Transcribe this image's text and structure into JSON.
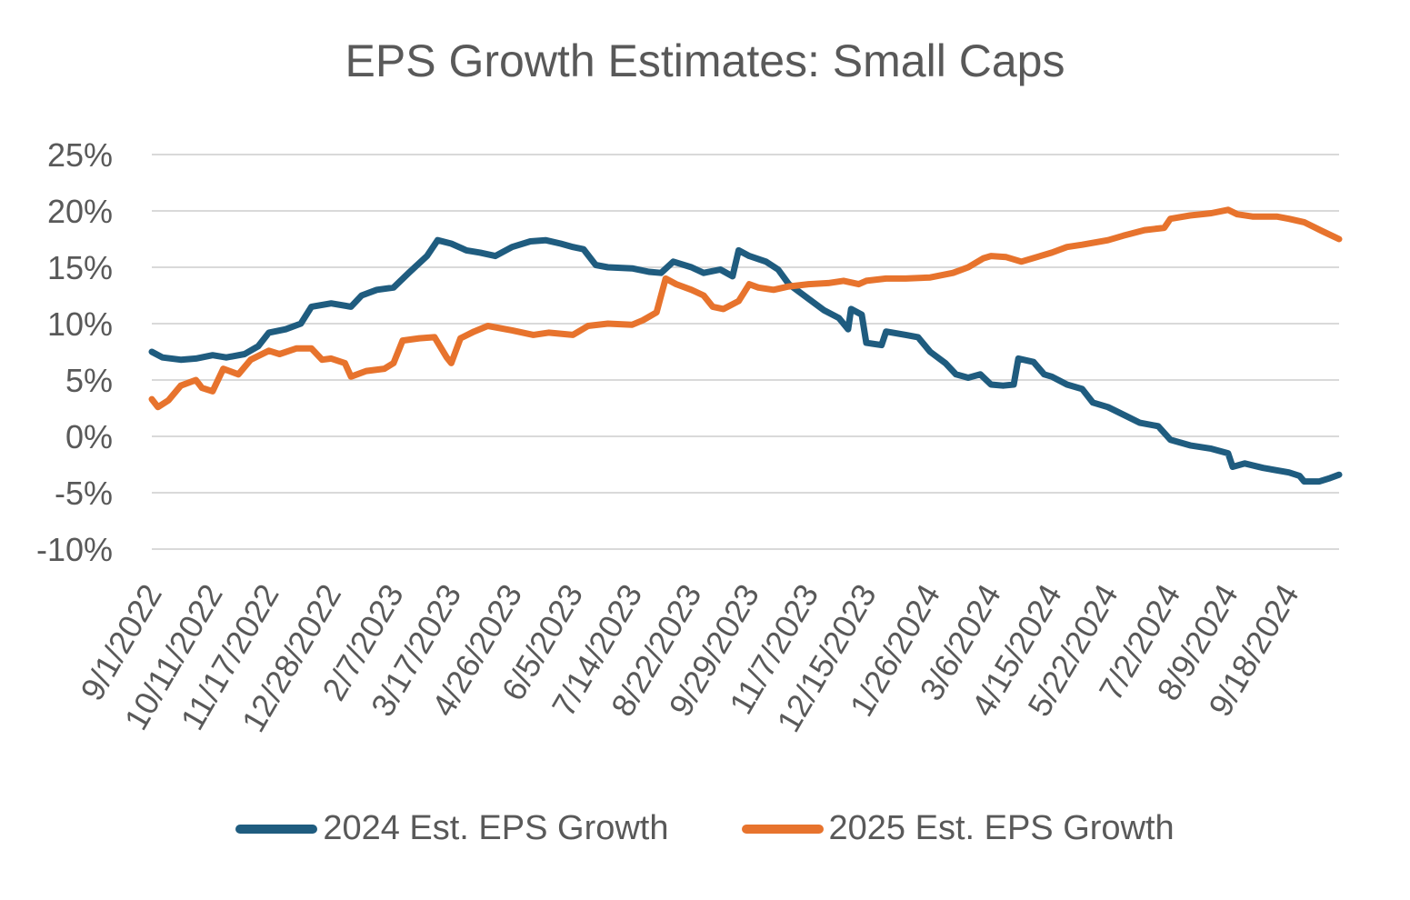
{
  "chart_data": {
    "type": "line",
    "title": "EPS Growth Estimates: Small Caps",
    "xlabel": "",
    "ylabel": "",
    "ylim": [
      -10,
      25
    ],
    "y_ticks": [
      "25%",
      "20%",
      "15%",
      "10%",
      "5%",
      "0%",
      "-5%",
      "-10%"
    ],
    "y_tick_values": [
      25,
      20,
      15,
      10,
      5,
      0,
      -5,
      -10
    ],
    "x_ticks": [
      "9/1/2022",
      "10/11/2022",
      "11/17/2022",
      "12/28/2022",
      "2/7/2023",
      "3/17/2023",
      "4/26/2023",
      "6/5/2023",
      "7/14/2023",
      "8/22/2023",
      "9/29/2023",
      "11/7/2023",
      "12/15/2023",
      "1/26/2024",
      "3/6/2024",
      "4/15/2024",
      "5/22/2024",
      "7/2/2024",
      "8/9/2024",
      "9/18/2024"
    ],
    "x_range": [
      "9/1/2022",
      "10/21/2024"
    ],
    "grid": true,
    "legend_position": "bottom",
    "series": [
      {
        "name": "2024 Est. EPS Growth",
        "color": "#1f5c7f",
        "points": [
          [
            "9/1/2022",
            7.5
          ],
          [
            "9/8/2022",
            7.0
          ],
          [
            "9/20/2022",
            6.8
          ],
          [
            "9/30/2022",
            6.9
          ],
          [
            "10/11/2022",
            7.2
          ],
          [
            "10/20/2022",
            7.0
          ],
          [
            "11/1/2022",
            7.3
          ],
          [
            "11/10/2022",
            8.0
          ],
          [
            "11/17/2022",
            9.2
          ],
          [
            "11/28/2022",
            9.5
          ],
          [
            "12/8/2022",
            10.0
          ],
          [
            "12/15/2022",
            11.5
          ],
          [
            "12/28/2022",
            11.8
          ],
          [
            "1/10/2023",
            11.5
          ],
          [
            "1/17/2023",
            12.5
          ],
          [
            "1/27/2023",
            13.0
          ],
          [
            "2/7/2023",
            13.2
          ],
          [
            "2/17/2023",
            14.5
          ],
          [
            "3/1/2023",
            16.0
          ],
          [
            "3/8/2023",
            17.4
          ],
          [
            "3/17/2023",
            17.1
          ],
          [
            "3/27/2023",
            16.5
          ],
          [
            "4/5/2023",
            16.3
          ],
          [
            "4/15/2023",
            16.0
          ],
          [
            "4/26/2023",
            16.8
          ],
          [
            "5/8/2023",
            17.3
          ],
          [
            "5/18/2023",
            17.4
          ],
          [
            "5/28/2023",
            17.1
          ],
          [
            "6/5/2023",
            16.8
          ],
          [
            "6/12/2023",
            16.6
          ],
          [
            "6/20/2023",
            15.2
          ],
          [
            "6/28/2023",
            15.0
          ],
          [
            "7/14/2023",
            14.9
          ],
          [
            "7/25/2023",
            14.6
          ],
          [
            "8/2/2023",
            14.5
          ],
          [
            "8/10/2023",
            15.5
          ],
          [
            "8/22/2023",
            15.0
          ],
          [
            "8/30/2023",
            14.5
          ],
          [
            "9/10/2023",
            14.8
          ],
          [
            "9/18/2023",
            14.2
          ],
          [
            "9/22/2023",
            16.5
          ],
          [
            "9/29/2023",
            16.0
          ],
          [
            "10/10/2023",
            15.5
          ],
          [
            "10/18/2023",
            14.8
          ],
          [
            "10/25/2023",
            13.5
          ],
          [
            "11/7/2023",
            12.2
          ],
          [
            "11/17/2023",
            11.2
          ],
          [
            "11/27/2023",
            10.5
          ],
          [
            "12/3/2023",
            9.5
          ],
          [
            "12/5/2023",
            11.3
          ],
          [
            "12/12/2023",
            10.8
          ],
          [
            "12/15/2023",
            8.3
          ],
          [
            "12/25/2023",
            8.1
          ],
          [
            "12/28/2023",
            9.3
          ],
          [
            "1/10/2024",
            9.0
          ],
          [
            "1/18/2024",
            8.8
          ],
          [
            "1/26/2024",
            7.5
          ],
          [
            "2/5/2024",
            6.5
          ],
          [
            "2/12/2024",
            5.5
          ],
          [
            "2/20/2024",
            5.2
          ],
          [
            "2/28/2024",
            5.5
          ],
          [
            "3/6/2024",
            4.6
          ],
          [
            "3/14/2024",
            4.5
          ],
          [
            "3/21/2024",
            4.6
          ],
          [
            "3/24/2024",
            6.9
          ],
          [
            "4/3/2024",
            6.6
          ],
          [
            "4/10/2024",
            5.5
          ],
          [
            "4/15/2024",
            5.3
          ],
          [
            "4/25/2024",
            4.6
          ],
          [
            "5/5/2024",
            4.2
          ],
          [
            "5/12/2024",
            3.0
          ],
          [
            "5/22/2024",
            2.6
          ],
          [
            "6/3/2024",
            1.8
          ],
          [
            "6/12/2024",
            1.2
          ],
          [
            "6/24/2024",
            0.9
          ],
          [
            "7/2/2024",
            -0.3
          ],
          [
            "7/15/2024",
            -0.8
          ],
          [
            "7/29/2024",
            -1.1
          ],
          [
            "8/9/2024",
            -1.5
          ],
          [
            "8/12/2024",
            -2.7
          ],
          [
            "8/20/2024",
            -2.4
          ],
          [
            "9/1/2024",
            -2.8
          ],
          [
            "9/18/2024",
            -3.2
          ],
          [
            "9/25/2024",
            -3.5
          ],
          [
            "9/28/2024",
            -4.0
          ],
          [
            "10/8/2024",
            -4.0
          ],
          [
            "10/15/2024",
            -3.7
          ],
          [
            "10/21/2024",
            -3.4
          ]
        ]
      },
      {
        "name": "2025 Est. EPS Growth",
        "color": "#e7732d",
        "points": [
          [
            "9/1/2022",
            3.3
          ],
          [
            "9/5/2022",
            2.6
          ],
          [
            "9/12/2022",
            3.2
          ],
          [
            "9/20/2022",
            4.5
          ],
          [
            "9/30/2022",
            5.0
          ],
          [
            "10/4/2022",
            4.3
          ],
          [
            "10/11/2022",
            4.0
          ],
          [
            "10/18/2022",
            6.0
          ],
          [
            "10/28/2022",
            5.5
          ],
          [
            "11/5/2022",
            6.8
          ],
          [
            "11/17/2022",
            7.6
          ],
          [
            "11/24/2022",
            7.3
          ],
          [
            "12/5/2022",
            7.8
          ],
          [
            "12/15/2022",
            7.8
          ],
          [
            "12/22/2022",
            6.8
          ],
          [
            "12/28/2022",
            6.9
          ],
          [
            "1/6/2023",
            6.5
          ],
          [
            "1/10/2023",
            5.3
          ],
          [
            "1/20/2023",
            5.8
          ],
          [
            "2/1/2023",
            6.0
          ],
          [
            "2/7/2023",
            6.5
          ],
          [
            "2/13/2023",
            8.5
          ],
          [
            "2/24/2023",
            8.7
          ],
          [
            "3/6/2023",
            8.8
          ],
          [
            "3/14/2023",
            7.0
          ],
          [
            "3/17/2023",
            6.5
          ],
          [
            "3/23/2023",
            8.7
          ],
          [
            "4/1/2023",
            9.3
          ],
          [
            "4/10/2023",
            9.8
          ],
          [
            "4/26/2023",
            9.4
          ],
          [
            "5/10/2023",
            9.0
          ],
          [
            "5/20/2023",
            9.2
          ],
          [
            "6/5/2023",
            9.0
          ],
          [
            "6/15/2023",
            9.8
          ],
          [
            "6/28/2023",
            10.0
          ],
          [
            "7/14/2023",
            9.9
          ],
          [
            "7/21/2023",
            10.3
          ],
          [
            "7/30/2023",
            11.0
          ],
          [
            "8/5/2023",
            14.0
          ],
          [
            "8/12/2023",
            13.5
          ],
          [
            "8/22/2023",
            13.0
          ],
          [
            "8/30/2023",
            12.5
          ],
          [
            "9/5/2023",
            11.5
          ],
          [
            "9/12/2023",
            11.3
          ],
          [
            "9/22/2023",
            12.0
          ],
          [
            "9/29/2023",
            13.5
          ],
          [
            "10/5/2023",
            13.2
          ],
          [
            "10/15/2023",
            13.0
          ],
          [
            "10/25/2023",
            13.3
          ],
          [
            "11/7/2023",
            13.5
          ],
          [
            "11/20/2023",
            13.6
          ],
          [
            "11/30/2023",
            13.8
          ],
          [
            "12/10/2023",
            13.5
          ],
          [
            "12/15/2023",
            13.8
          ],
          [
            "12/28/2023",
            14.0
          ],
          [
            "1/10/2024",
            14.0
          ],
          [
            "1/26/2024",
            14.1
          ],
          [
            "2/10/2024",
            14.5
          ],
          [
            "2/20/2024",
            15.0
          ],
          [
            "3/1/2024",
            15.8
          ],
          [
            "3/6/2024",
            16.0
          ],
          [
            "3/16/2024",
            15.9
          ],
          [
            "3/26/2024",
            15.5
          ],
          [
            "4/15/2024",
            16.3
          ],
          [
            "4/25/2024",
            16.8
          ],
          [
            "5/5/2024",
            17.0
          ],
          [
            "5/22/2024",
            17.4
          ],
          [
            "6/1/2024",
            17.8
          ],
          [
            "6/15/2024",
            18.3
          ],
          [
            "6/28/2024",
            18.5
          ],
          [
            "7/2/2024",
            19.3
          ],
          [
            "7/15/2024",
            19.6
          ],
          [
            "7/29/2024",
            19.8
          ],
          [
            "8/9/2024",
            20.1
          ],
          [
            "8/15/2024",
            19.7
          ],
          [
            "8/25/2024",
            19.5
          ],
          [
            "9/10/2024",
            19.5
          ],
          [
            "9/18/2024",
            19.3
          ],
          [
            "9/28/2024",
            19.0
          ],
          [
            "10/10/2024",
            18.2
          ],
          [
            "10/21/2024",
            17.5
          ]
        ]
      }
    ]
  }
}
